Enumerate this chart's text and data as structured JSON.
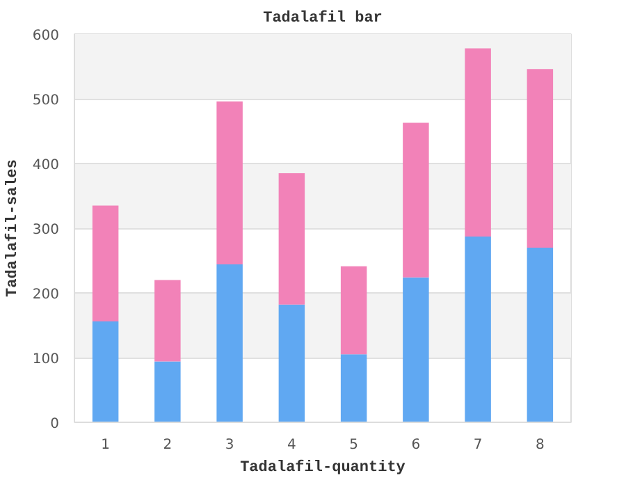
{
  "chart_data": {
    "type": "bar",
    "title": "Tadalafil bar",
    "xlabel": "Tadalafil-quantity",
    "ylabel": "Tadalafil-sales",
    "categories": [
      "1",
      "2",
      "3",
      "4",
      "5",
      "6",
      "7",
      "8"
    ],
    "stacked": true,
    "series": [
      {
        "color": "#60a8f2",
        "values": [
          156,
          94,
          244,
          182,
          105,
          224,
          287,
          270
        ]
      },
      {
        "color": "#f282b8",
        "values": [
          179,
          126,
          252,
          203,
          136,
          239,
          291,
          276
        ]
      }
    ],
    "ylim": [
      0,
      600
    ],
    "yticks": [
      0,
      100,
      200,
      300,
      400,
      500,
      600
    ],
    "grid": "y"
  }
}
